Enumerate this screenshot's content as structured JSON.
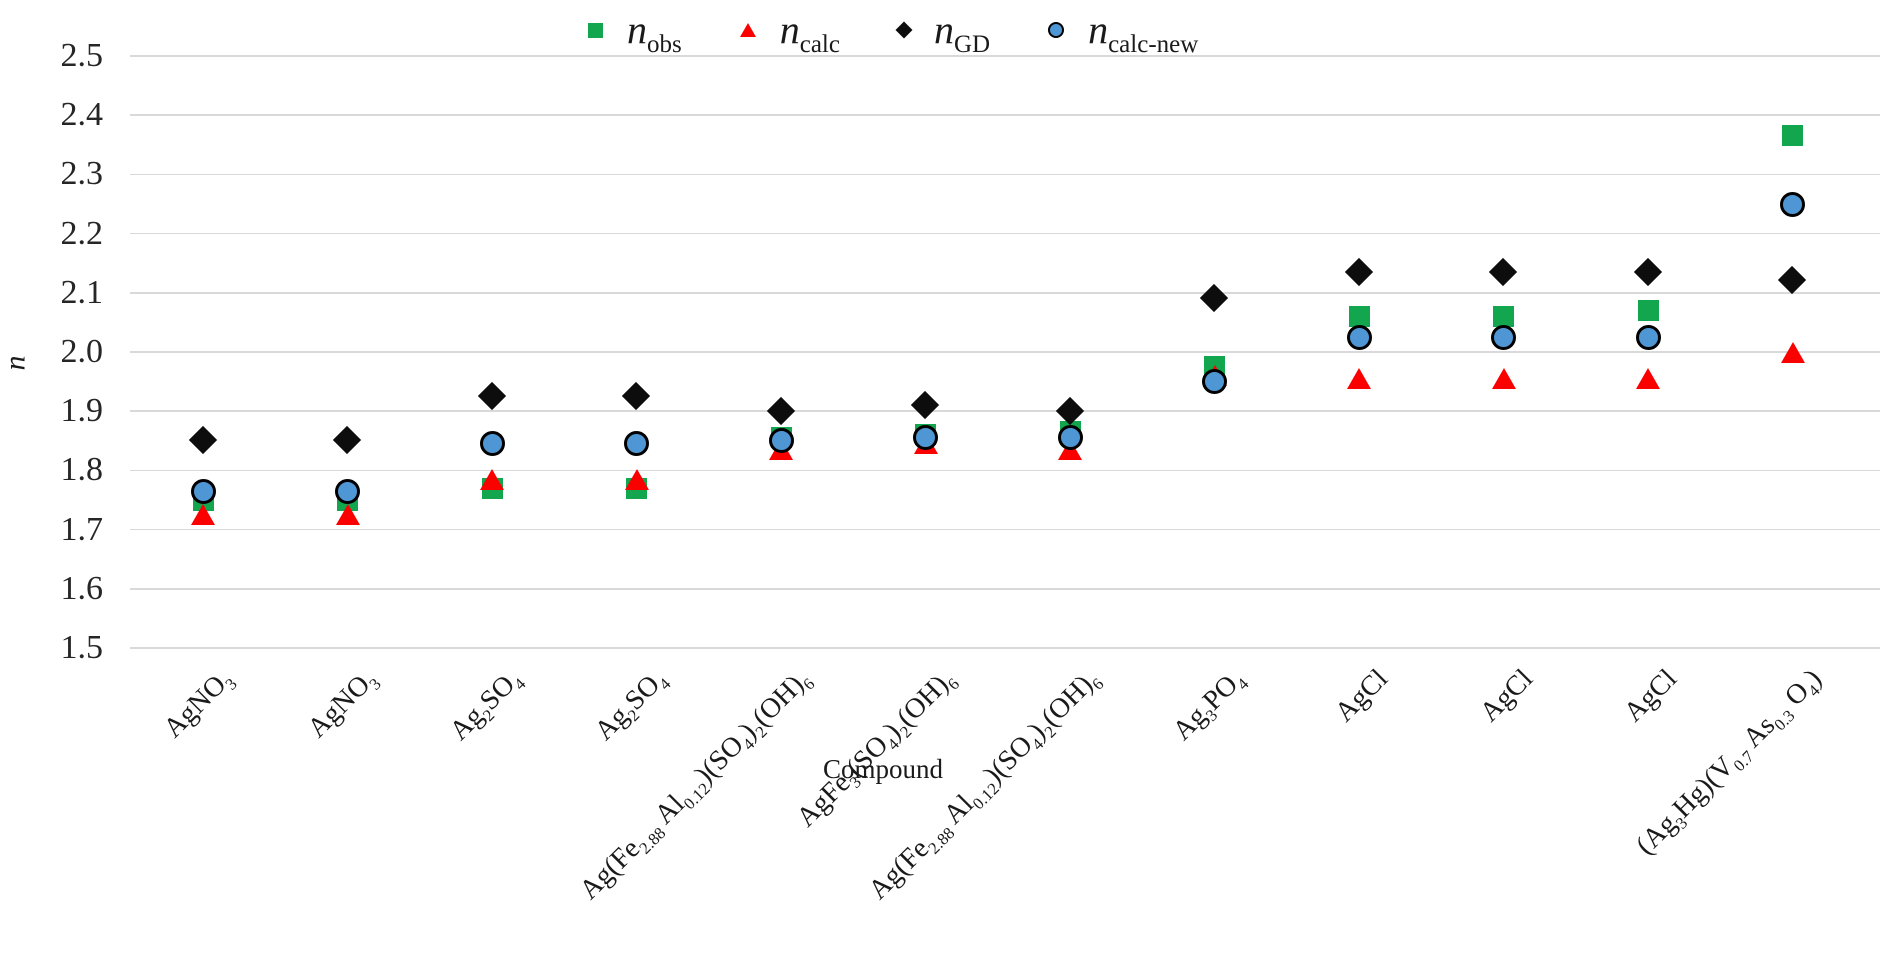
{
  "chart_data": {
    "type": "scatter",
    "title": "",
    "xlabel": "Compound",
    "ylabel": "n",
    "ylim": [
      1.5,
      2.5
    ],
    "ytick_step": 0.1,
    "yticks": [
      "2.5",
      "2.4",
      "2.3",
      "2.2",
      "2.1",
      "2.0",
      "1.9",
      "1.8",
      "1.7",
      "1.6",
      "1.5"
    ],
    "grid": true,
    "grid_color": "#d9d9d9",
    "legend_position": "top-center",
    "categories": [
      "AgNO_{3}",
      "AgNO_{3}",
      "Ag_{2}SO_{4}",
      "Ag_{2}SO_{4}",
      "Ag(Fe_{2.88} Al_{0.12})(SO_{4})_{2}(OH)_{6}",
      "AgFe_{3}(SO_{4})_{2}(OH)_{6}",
      "Ag(Fe_{2.88} Al_{0.12})(SO_{4})_{2}(OH)_{6}",
      "Ag_{3}PO_{4}",
      "AgCl",
      "AgCl",
      "AgCl",
      "(Ag_{3}Hg)(V_{0.7} As_{0.3} O_{4})"
    ],
    "series": [
      {
        "name": "n_{obs}",
        "marker": "square",
        "color": "#12a64e",
        "values": [
          1.75,
          1.75,
          1.77,
          1.77,
          1.855,
          1.86,
          1.865,
          1.975,
          2.06,
          2.06,
          2.07,
          2.365
        ]
      },
      {
        "name": "n_{calc}",
        "marker": "triangle",
        "color": "#fc0000",
        "values": [
          1.725,
          1.725,
          1.785,
          1.785,
          1.835,
          1.845,
          1.835,
          1.96,
          1.955,
          1.955,
          1.955,
          2.0
        ]
      },
      {
        "name": "n_{GD}",
        "marker": "diamond",
        "color": "#0d0d0d",
        "values": [
          1.85,
          1.85,
          1.925,
          1.925,
          1.9,
          1.91,
          1.9,
          2.09,
          2.135,
          2.135,
          2.135,
          2.12
        ]
      },
      {
        "name": "n_{calc-new}",
        "marker": "circle",
        "color": "#4f97d4",
        "stroke": "#000000",
        "values": [
          1.765,
          1.765,
          1.845,
          1.845,
          1.85,
          1.855,
          1.855,
          1.95,
          2.025,
          2.025,
          2.025,
          2.25
        ]
      }
    ]
  }
}
